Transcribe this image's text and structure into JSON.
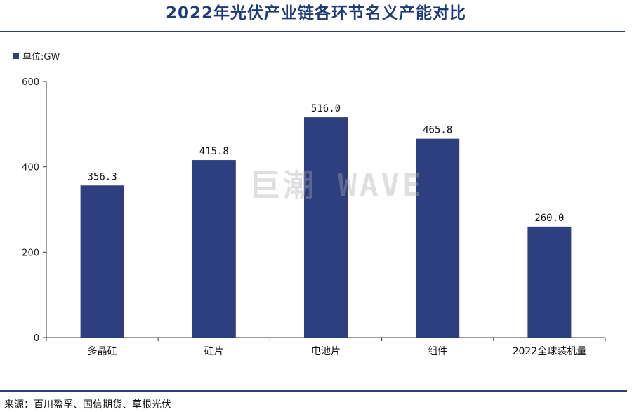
{
  "title": "2022年光伏产业链各环节名义产能对比",
  "unit_label": "单位:GW",
  "source": "来源：百川盈孚、国信期货、草根光伏",
  "watermark": "巨潮 WAVE",
  "colors": {
    "bar": "#2d3f7f",
    "accent": "#1f3a78",
    "axis": "#333333"
  },
  "chart_data": {
    "type": "bar",
    "categories": [
      "多晶硅",
      "硅片",
      "电池片",
      "组件",
      "2022全球装机量"
    ],
    "values": [
      356.3,
      415.8,
      516.0,
      465.8,
      260.0
    ],
    "value_labels": [
      "356.3",
      "415.8",
      "516.0",
      "465.8",
      "260.0"
    ],
    "title": "2022年光伏产业链各环节名义产能对比",
    "ylabel": "单位:GW",
    "ylim": [
      0,
      600
    ],
    "yticks": [
      0,
      200,
      400,
      600
    ],
    "grid": false,
    "legend": "none"
  }
}
